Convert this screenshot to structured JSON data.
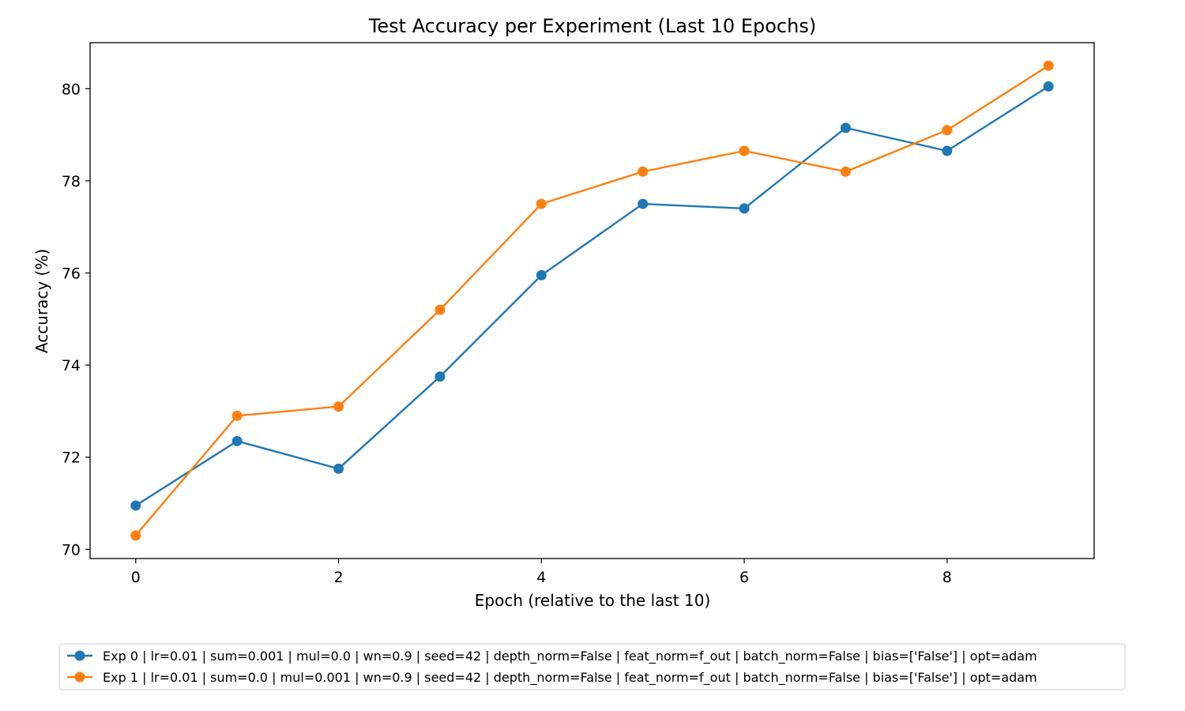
{
  "chart_data": {
    "type": "line",
    "title": "Test Accuracy per Experiment (Last 10 Epochs)",
    "xlabel": "Epoch (relative to the last 10)",
    "ylabel": "Accuracy (%)",
    "xlim": [
      -0.45,
      9.45
    ],
    "ylim": [
      69.8,
      81.0
    ],
    "x": [
      0,
      1,
      2,
      3,
      4,
      5,
      6,
      7,
      8,
      9
    ],
    "xticks": [
      0,
      2,
      4,
      6,
      8
    ],
    "yticks": [
      70,
      72,
      74,
      76,
      78,
      80
    ],
    "grid": false,
    "legend_position": "below",
    "series": [
      {
        "name": "Exp 0 | lr=0.01 | sum=0.001 | mul=0.0 | wn=0.9 | seed=42 | depth_norm=False | feat_norm=f_out | batch_norm=False | bias=['False'] | opt=adam",
        "color": "#1f77b4",
        "values": [
          70.95,
          72.35,
          71.75,
          73.75,
          75.95,
          77.5,
          77.4,
          79.15,
          78.65,
          80.05
        ]
      },
      {
        "name": "Exp 1 | lr=0.01 | sum=0.0 | mul=0.001 | wn=0.9 | seed=42 | depth_norm=False | feat_norm=f_out | batch_norm=False | bias=['False'] | opt=adam",
        "color": "#ff7f0e",
        "values": [
          70.3,
          72.9,
          73.1,
          75.2,
          77.5,
          78.2,
          78.65,
          78.2,
          79.1,
          80.5
        ]
      }
    ]
  }
}
